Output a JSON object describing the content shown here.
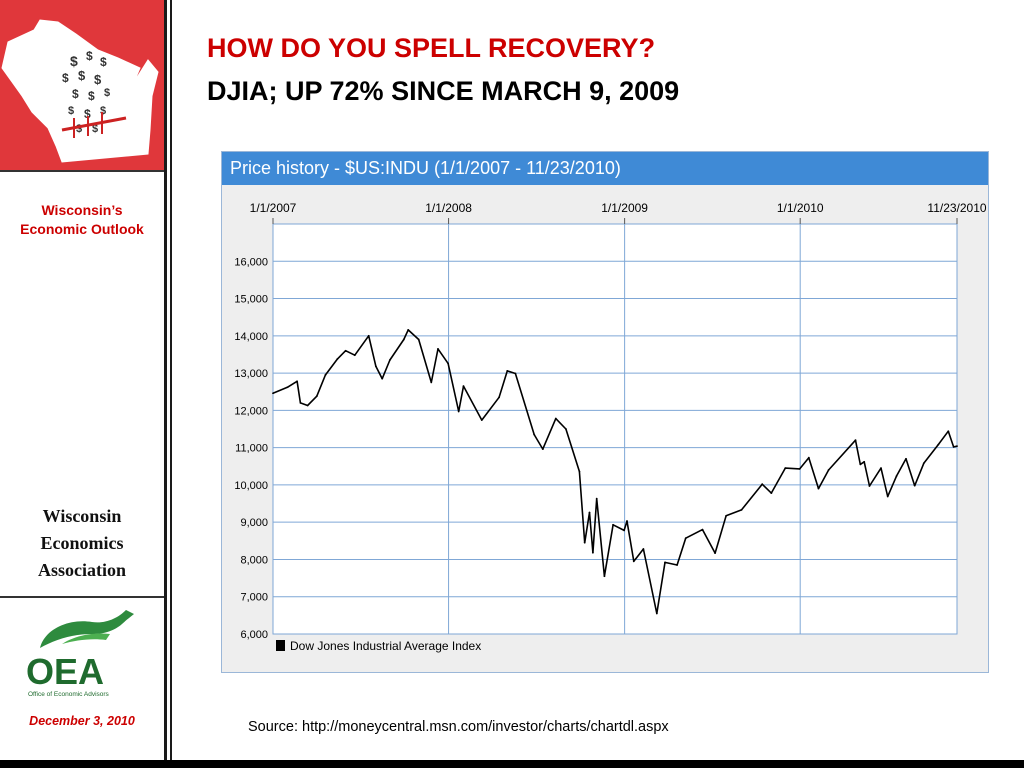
{
  "slide": {
    "title_line1": "HOW DO YOU SPELL RECOVERY?",
    "title_line2": "DJIA; UP 72% SINCE MARCH 9, 2009",
    "source": "Source: http://moneycentral.msn.com/investor/charts/chartdl.aspx"
  },
  "sidebar": {
    "outlook_line1": "Wisconsin’s",
    "outlook_line2": "Economic Outlook",
    "assoc_line1": "Wisconsin",
    "assoc_line2": "Economics",
    "assoc_line3": "Association",
    "logo_text": "OEA",
    "logo_subtext": "Office of Economic Advisors",
    "date": "December 3, 2010",
    "map_color": "#e0373b"
  },
  "chart_data": {
    "type": "line",
    "title": "Price history - $US:INDU (1/1/2007 - 11/23/2010)",
    "x_tick_labels": [
      "1/1/2007",
      "1/1/2008",
      "1/1/2009",
      "1/1/2010",
      "11/23/2010"
    ],
    "y_ticks": [
      6000,
      7000,
      8000,
      9000,
      10000,
      11000,
      12000,
      13000,
      14000,
      15000,
      16000
    ],
    "y_tick_labels": [
      "6,000",
      "7,000",
      "8,000",
      "9,000",
      "10,000",
      "11,000",
      "12,000",
      "13,000",
      "14,000",
      "15,000",
      "16,000"
    ],
    "ylim": [
      6000,
      17000
    ],
    "xlim": [
      "2007-01-01",
      "2010-11-23"
    ],
    "grid": true,
    "line_color": "#000000",
    "legend_position": "bottom-left",
    "series": [
      {
        "name": "Dow Jones Industrial Average Index",
        "points": [
          [
            "2007-01-01",
            12460
          ],
          [
            "2007-01-31",
            12620
          ],
          [
            "2007-02-20",
            12780
          ],
          [
            "2007-02-27",
            12200
          ],
          [
            "2007-03-14",
            12130
          ],
          [
            "2007-04-02",
            12380
          ],
          [
            "2007-04-20",
            12950
          ],
          [
            "2007-05-15",
            13380
          ],
          [
            "2007-06-01",
            13600
          ],
          [
            "2007-06-20",
            13480
          ],
          [
            "2007-07-19",
            14000
          ],
          [
            "2007-08-03",
            13180
          ],
          [
            "2007-08-16",
            12850
          ],
          [
            "2007-09-01",
            13350
          ],
          [
            "2007-09-30",
            13900
          ],
          [
            "2007-10-09",
            14160
          ],
          [
            "2007-10-31",
            13900
          ],
          [
            "2007-11-26",
            12750
          ],
          [
            "2007-12-10",
            13650
          ],
          [
            "2007-12-31",
            13260
          ],
          [
            "2008-01-22",
            11970
          ],
          [
            "2008-02-01",
            12650
          ],
          [
            "2008-03-10",
            11740
          ],
          [
            "2008-04-15",
            12350
          ],
          [
            "2008-05-02",
            13060
          ],
          [
            "2008-05-19",
            12990
          ],
          [
            "2008-06-27",
            11350
          ],
          [
            "2008-07-15",
            10960
          ],
          [
            "2008-08-11",
            11780
          ],
          [
            "2008-09-01",
            11500
          ],
          [
            "2008-09-29",
            10360
          ],
          [
            "2008-10-10",
            8450
          ],
          [
            "2008-10-20",
            9260
          ],
          [
            "2008-10-27",
            8180
          ],
          [
            "2008-11-04",
            9630
          ],
          [
            "2008-11-20",
            7550
          ],
          [
            "2008-12-08",
            8930
          ],
          [
            "2008-12-31",
            8780
          ],
          [
            "2009-01-06",
            9030
          ],
          [
            "2009-01-20",
            7950
          ],
          [
            "2009-02-09",
            8280
          ],
          [
            "2009-03-09",
            6550
          ],
          [
            "2009-03-26",
            7920
          ],
          [
            "2009-04-20",
            7850
          ],
          [
            "2009-05-08",
            8570
          ],
          [
            "2009-06-12",
            8800
          ],
          [
            "2009-07-08",
            8170
          ],
          [
            "2009-07-31",
            9170
          ],
          [
            "2009-09-01",
            9330
          ],
          [
            "2009-10-14",
            10020
          ],
          [
            "2009-11-02",
            9780
          ],
          [
            "2009-12-01",
            10450
          ],
          [
            "2009-12-31",
            10430
          ],
          [
            "2010-01-19",
            10730
          ],
          [
            "2010-02-08",
            9900
          ],
          [
            "2010-03-01",
            10400
          ],
          [
            "2010-04-26",
            11200
          ],
          [
            "2010-05-06",
            10550
          ],
          [
            "2010-05-14",
            10620
          ],
          [
            "2010-05-25",
            9970
          ],
          [
            "2010-06-18",
            10450
          ],
          [
            "2010-07-02",
            9690
          ],
          [
            "2010-07-20",
            10230
          ],
          [
            "2010-08-09",
            10700
          ],
          [
            "2010-08-27",
            9980
          ],
          [
            "2010-09-15",
            10580
          ],
          [
            "2010-10-15",
            11080
          ],
          [
            "2010-11-05",
            11440
          ],
          [
            "2010-11-16",
            11020
          ],
          [
            "2010-11-23",
            11040
          ]
        ]
      }
    ]
  }
}
